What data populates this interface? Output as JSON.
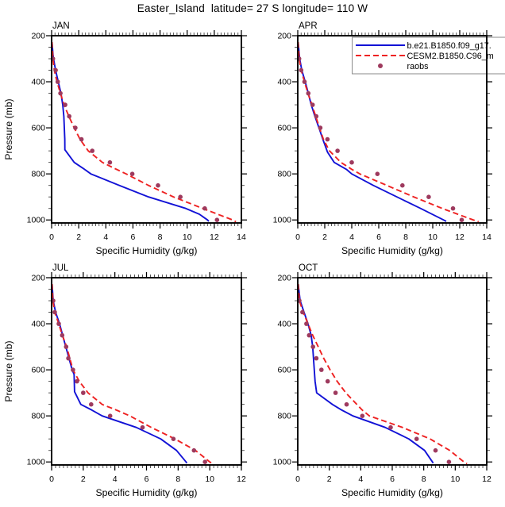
{
  "title": "Easter_Island  latitude= 27 S longitude= 110 W",
  "station": {
    "name": "Easter_Island",
    "latitude": "27 S",
    "longitude": "110 W"
  },
  "colors": {
    "model1": "#1212d6",
    "model2": "#ee2222",
    "raobs": "#9e3a5e",
    "frame": "#000000",
    "tick_major": "#000000",
    "tick_minor": "#444444",
    "legend_border": "#8a8a8a",
    "legend_bg": "#ffffff",
    "text": "#000000"
  },
  "legend": {
    "position": "top-right-of-APR-panel",
    "entries": [
      {
        "label": "b.e21.B1850.f09_g17.",
        "swatch": "line-solid",
        "color": "model1"
      },
      {
        "label": "CESM2.B1850.C96_m",
        "swatch": "line-dashed",
        "color": "model2"
      },
      {
        "label": "raobs",
        "swatch": "dot",
        "color": "raobs"
      }
    ]
  },
  "chart_data": [
    {
      "type": "line",
      "label": "JAN",
      "xlabel": "Specific Humidity (g/kg)",
      "ylabel": "Pressure (mb)",
      "ylabel_visible": true,
      "xlim": [
        0,
        14
      ],
      "xticks": [
        0,
        2,
        4,
        6,
        8,
        10,
        12,
        14
      ],
      "x_minor_step": 0.25,
      "y_top": 200,
      "y_bottom": 1013,
      "yticks": [
        200,
        400,
        600,
        800,
        1000
      ],
      "y_minor_step": 50,
      "grid": false,
      "series": [
        {
          "name": "b.e21.B1850.f09_g17.",
          "kind": "line",
          "style": "solid",
          "color": "model1",
          "points": [
            [
              0.03,
              230
            ],
            [
              0.1,
              280
            ],
            [
              0.14,
              300
            ],
            [
              0.29,
              350
            ],
            [
              0.49,
              400
            ],
            [
              0.69,
              450
            ],
            [
              0.82,
              500
            ],
            [
              0.9,
              550
            ],
            [
              0.94,
              600
            ],
            [
              0.97,
              650
            ],
            [
              0.98,
              695
            ],
            [
              1.67,
              750
            ],
            [
              2.3,
              775
            ],
            [
              2.9,
              800
            ],
            [
              5.0,
              850
            ],
            [
              7.15,
              900
            ],
            [
              9.9,
              950
            ],
            [
              10.9,
              975
            ],
            [
              11.5,
              1000
            ],
            [
              11.6,
              1006
            ]
          ]
        },
        {
          "name": "CESM2.B1850.C96_m",
          "kind": "line",
          "style": "dashed",
          "color": "model2",
          "points": [
            [
              0.03,
              228
            ],
            [
              0.1,
              300
            ],
            [
              0.2,
              350
            ],
            [
              0.4,
              400
            ],
            [
              0.65,
              450
            ],
            [
              0.92,
              500
            ],
            [
              1.27,
              550
            ],
            [
              1.67,
              600
            ],
            [
              2.1,
              650
            ],
            [
              2.7,
              700
            ],
            [
              3.75,
              750
            ],
            [
              4.6,
              775
            ],
            [
              5.5,
              800
            ],
            [
              7.15,
              850
            ],
            [
              9.0,
              900
            ],
            [
              11.15,
              950
            ],
            [
              13.35,
              1000
            ],
            [
              13.6,
              1008
            ]
          ]
        },
        {
          "name": "raobs",
          "kind": "scatter",
          "color": "raobs",
          "points": [
            [
              0.1,
              300
            ],
            [
              0.3,
              350
            ],
            [
              0.45,
              400
            ],
            [
              0.65,
              450
            ],
            [
              1.0,
              500
            ],
            [
              1.3,
              550
            ],
            [
              1.75,
              600
            ],
            [
              2.2,
              650
            ],
            [
              3.0,
              700
            ],
            [
              4.3,
              750
            ],
            [
              5.95,
              800
            ],
            [
              7.85,
              850
            ],
            [
              9.5,
              900
            ],
            [
              11.3,
              950
            ],
            [
              12.2,
              1000
            ]
          ]
        }
      ]
    },
    {
      "type": "line",
      "label": "APR",
      "xlabel": "Specific Humidity (g/kg)",
      "ylabel": "Pressure (mb)",
      "ylabel_visible": false,
      "xlim": [
        0,
        14
      ],
      "xticks": [
        0,
        2,
        4,
        6,
        8,
        10,
        12,
        14
      ],
      "x_minor_step": 0.25,
      "y_top": 200,
      "y_bottom": 1013,
      "yticks": [
        200,
        400,
        600,
        800,
        1000
      ],
      "y_minor_step": 50,
      "grid": false,
      "has_legend": true,
      "series": [
        {
          "name": "b.e21.B1850.f09_g17.",
          "kind": "line",
          "style": "solid",
          "color": "model1",
          "points": [
            [
              0.03,
              230
            ],
            [
              0.14,
              300
            ],
            [
              0.3,
              350
            ],
            [
              0.55,
              400
            ],
            [
              0.78,
              450
            ],
            [
              1.0,
              500
            ],
            [
              1.27,
              550
            ],
            [
              1.57,
              600
            ],
            [
              1.86,
              650
            ],
            [
              2.2,
              705
            ],
            [
              2.7,
              750
            ],
            [
              3.6,
              780
            ],
            [
              4.0,
              800
            ],
            [
              5.6,
              850
            ],
            [
              7.35,
              900
            ],
            [
              9.1,
              950
            ],
            [
              10.8,
              1000
            ],
            [
              11.0,
              1006
            ]
          ]
        },
        {
          "name": "CESM2.B1850.C96_m",
          "kind": "line",
          "style": "dashed",
          "color": "model2",
          "points": [
            [
              0.03,
              228
            ],
            [
              0.1,
              300
            ],
            [
              0.25,
              350
            ],
            [
              0.5,
              400
            ],
            [
              0.75,
              450
            ],
            [
              1.05,
              500
            ],
            [
              1.33,
              550
            ],
            [
              1.61,
              600
            ],
            [
              1.9,
              650
            ],
            [
              2.35,
              700
            ],
            [
              3.2,
              750
            ],
            [
              4.0,
              780
            ],
            [
              4.6,
              800
            ],
            [
              6.6,
              850
            ],
            [
              8.6,
              900
            ],
            [
              10.7,
              950
            ],
            [
              13.0,
              1000
            ],
            [
              13.4,
              1008
            ]
          ]
        },
        {
          "name": "raobs",
          "kind": "scatter",
          "color": "raobs",
          "points": [
            [
              0.1,
              300
            ],
            [
              0.25,
              350
            ],
            [
              0.5,
              400
            ],
            [
              0.78,
              450
            ],
            [
              1.1,
              500
            ],
            [
              1.37,
              550
            ],
            [
              1.67,
              600
            ],
            [
              2.2,
              650
            ],
            [
              2.95,
              700
            ],
            [
              4.0,
              750
            ],
            [
              5.9,
              800
            ],
            [
              7.75,
              850
            ],
            [
              9.7,
              900
            ],
            [
              11.5,
              950
            ],
            [
              12.15,
              1000
            ]
          ]
        }
      ]
    },
    {
      "type": "line",
      "label": "JUL",
      "xlabel": "Specific Humidity (g/kg)",
      "ylabel": "Pressure (mb)",
      "ylabel_visible": true,
      "xlim": [
        0,
        12
      ],
      "xticks": [
        0,
        2,
        4,
        6,
        8,
        10,
        12
      ],
      "x_minor_step": 0.25,
      "y_top": 200,
      "y_bottom": 1013,
      "yticks": [
        200,
        400,
        600,
        800,
        1000
      ],
      "y_minor_step": 50,
      "grid": false,
      "series": [
        {
          "name": "b.e21.B1850.f09_g17.",
          "kind": "line",
          "style": "solid",
          "color": "model1",
          "points": [
            [
              0.03,
              230
            ],
            [
              0.1,
              300
            ],
            [
              0.25,
              350
            ],
            [
              0.5,
              400
            ],
            [
              0.7,
              450
            ],
            [
              0.9,
              500
            ],
            [
              1.1,
              550
            ],
            [
              1.3,
              600
            ],
            [
              1.42,
              620
            ],
            [
              1.45,
              695
            ],
            [
              1.85,
              750
            ],
            [
              2.55,
              775
            ],
            [
              3.2,
              800
            ],
            [
              5.35,
              850
            ],
            [
              6.9,
              900
            ],
            [
              7.9,
              950
            ],
            [
              8.5,
              1000
            ],
            [
              8.55,
              1005
            ]
          ]
        },
        {
          "name": "CESM2.B1850.C96_m",
          "kind": "line",
          "style": "dashed",
          "color": "model2",
          "points": [
            [
              0.03,
              228
            ],
            [
              0.08,
              300
            ],
            [
              0.2,
              350
            ],
            [
              0.45,
              400
            ],
            [
              0.68,
              450
            ],
            [
              0.95,
              500
            ],
            [
              1.15,
              550
            ],
            [
              1.35,
              600
            ],
            [
              1.75,
              650
            ],
            [
              2.3,
              700
            ],
            [
              3.2,
              750
            ],
            [
              4.1,
              775
            ],
            [
              4.95,
              800
            ],
            [
              6.3,
              850
            ],
            [
              7.8,
              900
            ],
            [
              9.1,
              950
            ],
            [
              10.0,
              1000
            ],
            [
              10.15,
              1007
            ]
          ]
        },
        {
          "name": "raobs",
          "kind": "scatter",
          "color": "raobs",
          "points": [
            [
              0.1,
              300
            ],
            [
              0.2,
              350
            ],
            [
              0.45,
              400
            ],
            [
              0.67,
              450
            ],
            [
              0.92,
              500
            ],
            [
              1.06,
              550
            ],
            [
              1.35,
              600
            ],
            [
              1.6,
              650
            ],
            [
              2.0,
              700
            ],
            [
              2.5,
              750
            ],
            [
              3.7,
              800
            ],
            [
              5.75,
              850
            ],
            [
              7.7,
              900
            ],
            [
              9.0,
              950
            ],
            [
              9.7,
              1000
            ]
          ]
        }
      ]
    },
    {
      "type": "line",
      "label": "OCT",
      "xlabel": "Specific Humidity (g/kg)",
      "ylabel": "Pressure (mb)",
      "ylabel_visible": false,
      "xlim": [
        0,
        12
      ],
      "xticks": [
        0,
        2,
        4,
        6,
        8,
        10,
        12
      ],
      "x_minor_step": 0.25,
      "y_top": 200,
      "y_bottom": 1013,
      "yticks": [
        200,
        400,
        600,
        800,
        1000
      ],
      "y_minor_step": 50,
      "grid": false,
      "series": [
        {
          "name": "b.e21.B1850.f09_g17.",
          "kind": "line",
          "style": "solid",
          "color": "model1",
          "points": [
            [
              0.03,
              230
            ],
            [
              0.15,
              300
            ],
            [
              0.4,
              350
            ],
            [
              0.65,
              400
            ],
            [
              0.85,
              450
            ],
            [
              0.95,
              500
            ],
            [
              1.0,
              550
            ],
            [
              1.05,
              600
            ],
            [
              1.1,
              650
            ],
            [
              1.2,
              700
            ],
            [
              2.2,
              750
            ],
            [
              2.8,
              775
            ],
            [
              3.5,
              800
            ],
            [
              5.55,
              850
            ],
            [
              7.05,
              900
            ],
            [
              8.05,
              950
            ],
            [
              8.55,
              1000
            ],
            [
              8.6,
              1005
            ]
          ]
        },
        {
          "name": "CESM2.B1850.C96_m",
          "kind": "line",
          "style": "dashed",
          "color": "model2",
          "points": [
            [
              0.03,
              228
            ],
            [
              0.1,
              300
            ],
            [
              0.35,
              350
            ],
            [
              0.65,
              400
            ],
            [
              0.95,
              450
            ],
            [
              1.3,
              500
            ],
            [
              1.65,
              550
            ],
            [
              2.05,
              600
            ],
            [
              2.5,
              650
            ],
            [
              3.05,
              700
            ],
            [
              3.75,
              750
            ],
            [
              4.1,
              775
            ],
            [
              4.55,
              800
            ],
            [
              6.65,
              850
            ],
            [
              8.4,
              900
            ],
            [
              9.65,
              950
            ],
            [
              10.55,
              1000
            ],
            [
              10.75,
              1008
            ]
          ]
        },
        {
          "name": "raobs",
          "kind": "scatter",
          "color": "raobs",
          "points": [
            [
              0.1,
              300
            ],
            [
              0.3,
              350
            ],
            [
              0.55,
              400
            ],
            [
              0.72,
              450
            ],
            [
              0.97,
              500
            ],
            [
              1.18,
              550
            ],
            [
              1.5,
              600
            ],
            [
              1.9,
              650
            ],
            [
              2.4,
              700
            ],
            [
              3.1,
              750
            ],
            [
              4.1,
              800
            ],
            [
              5.9,
              850
            ],
            [
              7.55,
              900
            ],
            [
              8.75,
              950
            ],
            [
              9.6,
              1000
            ]
          ]
        }
      ]
    }
  ]
}
